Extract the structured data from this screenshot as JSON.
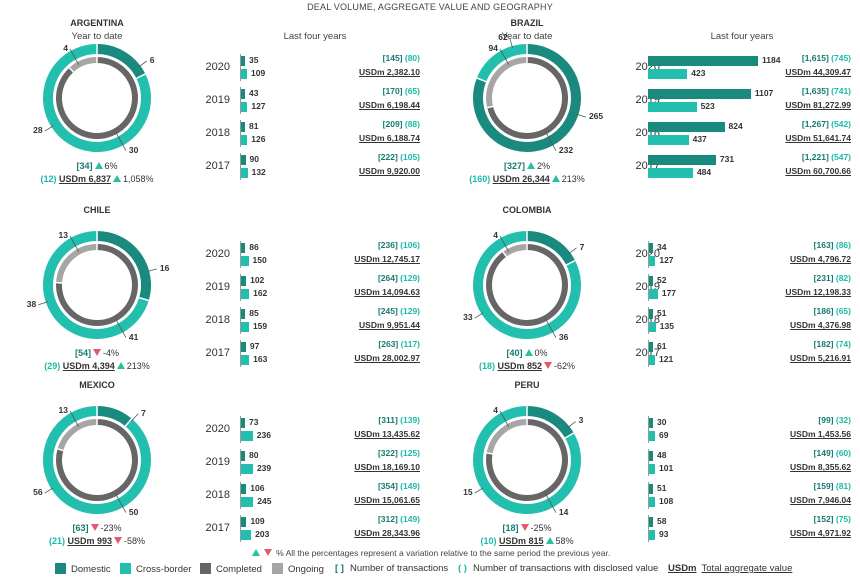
{
  "page_title": "DEAL VOLUME, AGGREGATE VALUE AND GEOGRAPHY",
  "labels": {
    "ytd": "Year to date",
    "l4y": "Last four years"
  },
  "colors": {
    "domestic": "#1a8a7e",
    "cross_border": "#22bfae",
    "completed": "#666666",
    "ongoing": "#a6a6a6",
    "up": "#2bbf9f",
    "down": "#e05a6a"
  },
  "footnote": "% All the percentages represent a variation relative to the same period the previous year.",
  "legend": [
    {
      "label": "Domestic",
      "type": "swatch",
      "color": "#1a8a7e"
    },
    {
      "label": "Cross-border",
      "type": "swatch",
      "color": "#22bfae"
    },
    {
      "label": "Completed",
      "type": "swatch",
      "color": "#666666"
    },
    {
      "label": "Ongoing",
      "type": "swatch",
      "color": "#a6a6a6"
    },
    {
      "symbol": "[ ]",
      "label": "Number of transactions",
      "type": "text"
    },
    {
      "symbol": "( )",
      "label": "Number of transactions with disclosed value",
      "type": "text"
    },
    {
      "symbol": "USDm",
      "label": "Total aggregate value",
      "type": "text"
    }
  ],
  "chart_data": [
    {
      "country": "ARGENTINA",
      "type": "donut+bar",
      "ytd": {
        "domestic": 6,
        "cross_border": 28,
        "completed": 30,
        "ongoing": 4,
        "transactions": "[34]",
        "transactions_change": "6%",
        "transactions_dir": "up",
        "disclosed": "(12)",
        "value": "USDm 6,837",
        "value_change": "1,058%",
        "value_dir": "up"
      },
      "years": [
        {
          "year": "2020",
          "domestic": 35,
          "cross_border": 109,
          "total": "[145]",
          "disclosed": "(80)",
          "value": "USDm 2,382.10"
        },
        {
          "year": "2019",
          "domestic": 43,
          "cross_border": 127,
          "total": "[170]",
          "disclosed": "(65)",
          "value": "USDm 6,198.44"
        },
        {
          "year": "2018",
          "domestic": 81,
          "cross_border": 126,
          "total": "[209]",
          "disclosed": "(88)",
          "value": "USDm 6,188.74"
        },
        {
          "year": "2017",
          "domestic": 90,
          "cross_border": 132,
          "total": "[222]",
          "disclosed": "(105)",
          "value": "USDm 9,920.00"
        }
      ]
    },
    {
      "country": "BRAZIL",
      "type": "donut+bar",
      "ytd": {
        "domestic": 265,
        "cross_border": 62,
        "completed": 232,
        "ongoing": 94,
        "transactions": "[327]",
        "transactions_change": "2%",
        "transactions_dir": "up",
        "disclosed": "(160)",
        "value": "USDm 26,344",
        "value_change": "213%",
        "value_dir": "up"
      },
      "years": [
        {
          "year": "2020",
          "domestic": 1184,
          "cross_border": 423,
          "total": "[1,615]",
          "disclosed": "(745)",
          "value": "USDm 44,309.47"
        },
        {
          "year": "2019",
          "domestic": 1107,
          "cross_border": 523,
          "total": "[1,635]",
          "disclosed": "(741)",
          "value": "USDm 81,272.99"
        },
        {
          "year": "2018",
          "domestic": 824,
          "cross_border": 437,
          "total": "[1,267]",
          "disclosed": "(542)",
          "value": "USDm 51,641.74"
        },
        {
          "year": "2017",
          "domestic": 731,
          "cross_border": 484,
          "total": "[1,221]",
          "disclosed": "(547)",
          "value": "USDm 60,700.66"
        }
      ]
    },
    {
      "country": "CHILE",
      "type": "donut+bar",
      "ytd": {
        "domestic": 16,
        "cross_border": 38,
        "completed": 41,
        "ongoing": 13,
        "transactions": "[54]",
        "transactions_change": "-4%",
        "transactions_dir": "down",
        "disclosed": "(29)",
        "value": "USDm 4,394",
        "value_change": "213%",
        "value_dir": "up"
      },
      "years": [
        {
          "year": "2020",
          "domestic": 86,
          "cross_border": 150,
          "total": "[236]",
          "disclosed": "(106)",
          "value": "USDm 12,745.17"
        },
        {
          "year": "2019",
          "domestic": 102,
          "cross_border": 162,
          "total": "[264]",
          "disclosed": "(129)",
          "value": "USDm 14,094.63"
        },
        {
          "year": "2018",
          "domestic": 85,
          "cross_border": 159,
          "total": "[245]",
          "disclosed": "(129)",
          "value": "USDm 9,951.44"
        },
        {
          "year": "2017",
          "domestic": 97,
          "cross_border": 163,
          "total": "[263]",
          "disclosed": "(117)",
          "value": "USDm 28,002.97"
        }
      ]
    },
    {
      "country": "COLOMBIA",
      "type": "donut+bar",
      "ytd": {
        "domestic": 7,
        "cross_border": 33,
        "completed": 36,
        "ongoing": 4,
        "transactions": "[40]",
        "transactions_change": "0%",
        "transactions_dir": "up",
        "disclosed": "(18)",
        "value": "USDm 852",
        "value_change": "-62%",
        "value_dir": "down"
      },
      "years": [
        {
          "year": "2020",
          "domestic": 34,
          "cross_border": 127,
          "total": "[163]",
          "disclosed": "(86)",
          "value": "USDm 4,796.72"
        },
        {
          "year": "2019",
          "domestic": 52,
          "cross_border": 177,
          "total": "[231]",
          "disclosed": "(82)",
          "value": "USDm 12,198.33"
        },
        {
          "year": "2018",
          "domestic": 51,
          "cross_border": 135,
          "total": "[186]",
          "disclosed": "(65)",
          "value": "USDm 4,376.98"
        },
        {
          "year": "2017",
          "domestic": 61,
          "cross_border": 121,
          "total": "[182]",
          "disclosed": "(74)",
          "value": "USDm 5,216.91"
        }
      ]
    },
    {
      "country": "MEXICO",
      "type": "donut+bar",
      "ytd": {
        "domestic": 7,
        "cross_border": 56,
        "completed": 50,
        "ongoing": 13,
        "transactions": "[63]",
        "transactions_change": "-23%",
        "transactions_dir": "down",
        "disclosed": "(21)",
        "value": "USDm 993",
        "value_change": "-58%",
        "value_dir": "down"
      },
      "years": [
        {
          "year": "2020",
          "domestic": 73,
          "cross_border": 236,
          "total": "[311]",
          "disclosed": "(139)",
          "value": "USDm 13,435.62"
        },
        {
          "year": "2019",
          "domestic": 80,
          "cross_border": 239,
          "total": "[322]",
          "disclosed": "(125)",
          "value": "USDm 18,169.10"
        },
        {
          "year": "2018",
          "domestic": 106,
          "cross_border": 245,
          "total": "[354]",
          "disclosed": "(149)",
          "value": "USDm 15,061.65"
        },
        {
          "year": "2017",
          "domestic": 109,
          "cross_border": 203,
          "total": "[312]",
          "disclosed": "(149)",
          "value": "USDm 28,343.96"
        }
      ]
    },
    {
      "country": "PERU",
      "type": "donut+bar",
      "ytd": {
        "domestic": 3,
        "cross_border": 15,
        "completed": 14,
        "ongoing": 4,
        "transactions": "[18]",
        "transactions_change": "-25%",
        "transactions_dir": "down",
        "disclosed": "(10)",
        "value": "USDm 815",
        "value_change": "58%",
        "value_dir": "up"
      },
      "years": [
        {
          "year": "",
          "domestic": 30,
          "cross_border": 69,
          "total": "[99]",
          "disclosed": "(32)",
          "value": "USDm 1,453.56"
        },
        {
          "year": "",
          "domestic": 48,
          "cross_border": 101,
          "total": "[149]",
          "disclosed": "(60)",
          "value": "USDm 8,355.62"
        },
        {
          "year": "",
          "domestic": 51,
          "cross_border": 108,
          "total": "[159]",
          "disclosed": "(81)",
          "value": "USDm 7,946.04"
        },
        {
          "year": "",
          "domestic": 58,
          "cross_border": 93,
          "total": "[152]",
          "disclosed": "(75)",
          "value": "USDm 4,971.92"
        }
      ]
    }
  ]
}
